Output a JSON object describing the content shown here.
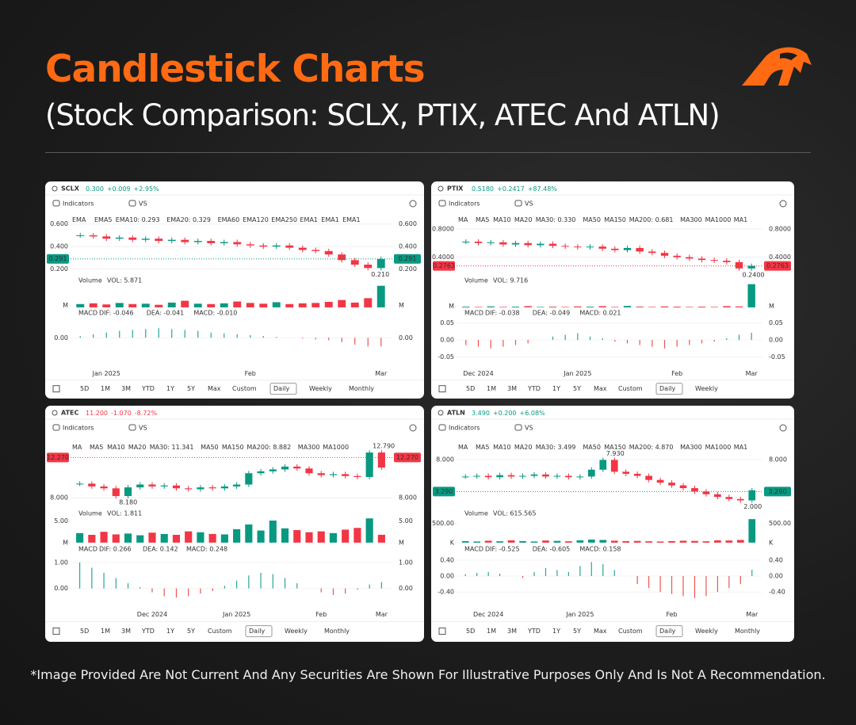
{
  "header": {
    "title": "Candlestick Charts",
    "subtitle": "(Stock Comparison: SCLX, PTIX, ATEC And ATLN)"
  },
  "footer": "*Image Provided Are Not Current And Any Securities Are Shown For Illustrative Purposes Only And Is Not A Recommendation.",
  "chart_data": [
    {
      "type": "candlestick",
      "ticker": "SCLX",
      "price": "0.300",
      "change": "+0.009",
      "change_pct": "+2.95%",
      "change_color": "#089981",
      "toolbar": [
        "Indicators",
        "VS"
      ],
      "ma_label": "EMA",
      "ma_items": [
        {
          "label": "EMA5",
          "color": "#f5c08a"
        },
        {
          "label": "EMA10: 0.293",
          "color": "#2962ff"
        },
        {
          "label": "EMA20: 0.329",
          "color": "#d500f9"
        },
        {
          "label": "EMA60",
          "color": "#7fb8e8"
        },
        {
          "label": "EMA120",
          "color": "#80cbc4"
        },
        {
          "label": "EMA250",
          "color": "#f48fb1"
        },
        {
          "label": "EMA1",
          "color": "#a5c8f0"
        },
        {
          "label": "EMA1",
          "color": "#ce93d8"
        },
        {
          "label": "EMA1",
          "color": "#ffcc80"
        }
      ],
      "categories": [
        null,
        null,
        "Jan 2025",
        null,
        null,
        null,
        null,
        null,
        null,
        null,
        null,
        null,
        null,
        "Feb",
        null,
        null,
        null,
        null,
        null,
        null,
        null,
        null,
        null,
        "Mar"
      ],
      "closes": [
        0.5,
        0.49,
        0.47,
        0.48,
        0.46,
        0.47,
        0.45,
        0.46,
        0.44,
        0.45,
        0.43,
        0.44,
        0.42,
        0.41,
        0.4,
        0.41,
        0.39,
        0.37,
        0.36,
        0.33,
        0.28,
        0.24,
        0.21,
        0.29
      ],
      "ylim": [
        0.15,
        0.65
      ],
      "yticks": [
        {
          "value": 0.6,
          "label": "0.600"
        },
        {
          "value": 0.4,
          "label": "0.400"
        },
        {
          "value": 0.2,
          "label": "0.200"
        }
      ],
      "last_price": {
        "value": 0.291,
        "label": "0.291"
      },
      "last_price_color": "#089981",
      "extremes": [
        {
          "value": 0.21,
          "label": "0.210"
        }
      ],
      "volume_label": "Volume",
      "volume_value": "VOL: 5.871",
      "volumes": [
        0.9,
        1.1,
        0.8,
        1.2,
        0.9,
        1.0,
        0.7,
        1.3,
        1.8,
        1.0,
        0.9,
        1.1,
        1.6,
        1.2,
        1.0,
        1.4,
        0.9,
        1.1,
        1.2,
        1.5,
        2.0,
        1.3,
        2.5,
        5.871
      ],
      "volume_lim": [
        0,
        6.5
      ],
      "volume_ticks": [
        {
          "value": 0.5,
          "label": "M"
        }
      ],
      "macd_label": "MACD",
      "macd_items": [
        {
          "label": "DIF: -0.046",
          "color": "#ff9800"
        },
        {
          "label": "DEA: -0.041",
          "color": "#2196f3"
        },
        {
          "label": "MACD: -0.010",
          "color": "#e040fb"
        }
      ],
      "macd": [
        0.002,
        0.004,
        0.006,
        0.008,
        0.009,
        0.01,
        0.011,
        0.01,
        0.009,
        0.008,
        0.006,
        0.005,
        0.004,
        0.003,
        0.002,
        0.001,
        0.0,
        -0.001,
        -0.002,
        -0.003,
        -0.005,
        -0.008,
        -0.01,
        -0.01
      ],
      "macd_lim": [
        -0.03,
        0.025
      ],
      "macd_ticks": [
        {
          "value": 0,
          "label": "0.00"
        }
      ],
      "ranges": [
        "5D",
        "1M",
        "3M",
        "YTD",
        "1Y",
        "5Y",
        "Max",
        "Custom"
      ],
      "intervals": [
        "Daily",
        "Weekly",
        "Monthly"
      ]
    },
    {
      "type": "candlestick",
      "ticker": "PTIX",
      "price": "0.5180",
      "change": "+0.2417",
      "change_pct": "+87.48%",
      "change_color": "#089981",
      "toolbar": [
        "Indicators",
        "VS"
      ],
      "ma_label": "MA",
      "ma_items": [
        {
          "label": "MA5",
          "color": "#f5c08a"
        },
        {
          "label": "MA10",
          "color": "#80deea"
        },
        {
          "label": "MA20",
          "color": "#ce93d8"
        },
        {
          "label": "MA30: 0.330",
          "color": "#2962ff"
        },
        {
          "label": "MA50",
          "color": "#90caf9"
        },
        {
          "label": "MA150",
          "color": "#80cbc4"
        },
        {
          "label": "MA200: 0.681",
          "color": "#f23645"
        },
        {
          "label": "MA300",
          "color": "#ffcc80"
        },
        {
          "label": "MA1000",
          "color": "#b39ddb"
        },
        {
          "label": "MA1",
          "color": "#a5c8f0"
        }
      ],
      "categories": [
        null,
        "Dec 2024",
        null,
        null,
        null,
        null,
        null,
        null,
        null,
        "Jan 2025",
        null,
        null,
        null,
        null,
        null,
        null,
        null,
        "Feb",
        null,
        null,
        null,
        null,
        null,
        "Mar"
      ],
      "closes": [
        0.62,
        0.6,
        0.61,
        0.58,
        0.6,
        0.57,
        0.59,
        0.56,
        0.55,
        0.54,
        0.55,
        0.52,
        0.5,
        0.53,
        0.48,
        0.46,
        0.42,
        0.4,
        0.38,
        0.36,
        0.35,
        0.33,
        0.24,
        0.2763
      ],
      "ylim": [
        0.15,
        0.95
      ],
      "yticks": [
        {
          "value": 0.8,
          "label": "0.8000"
        },
        {
          "value": 0.4,
          "label": "0.4000"
        }
      ],
      "last_price": {
        "value": 0.2763,
        "label": "0.2763"
      },
      "last_price_color": "#f23645",
      "extremes": [
        {
          "value": 0.24,
          "label": "0.2400"
        }
      ],
      "volume_label": "Volume",
      "volume_value": "VOL: 9.716",
      "volumes": [
        0.3,
        0.2,
        0.4,
        0.2,
        0.3,
        0.5,
        0.2,
        0.3,
        0.2,
        0.4,
        0.3,
        0.5,
        0.2,
        0.6,
        0.3,
        0.2,
        0.4,
        0.3,
        0.2,
        0.3,
        0.2,
        0.5,
        0.4,
        9.716
      ],
      "volume_lim": [
        0,
        10
      ],
      "volume_ticks": [
        {
          "value": 0.5,
          "label": "M"
        }
      ],
      "macd_label": "MACD",
      "macd_items": [
        {
          "label": "DIF: -0.038",
          "color": "#ff9800"
        },
        {
          "label": "DEA: -0.049",
          "color": "#2196f3"
        },
        {
          "label": "MACD: 0.021",
          "color": "#e040fb"
        }
      ],
      "macd": [
        -0.015,
        -0.02,
        -0.025,
        -0.02,
        -0.015,
        -0.01,
        0.0,
        0.01,
        0.015,
        0.02,
        0.01,
        0.005,
        -0.005,
        -0.01,
        -0.015,
        -0.02,
        -0.025,
        -0.02,
        -0.015,
        -0.01,
        -0.005,
        0.005,
        0.015,
        0.021
      ],
      "macd_lim": [
        -0.07,
        0.07
      ],
      "macd_ticks": [
        {
          "value": 0.05,
          "label": "0.05"
        },
        {
          "value": 0,
          "label": "0.00"
        },
        {
          "value": -0.05,
          "label": "-0.05"
        }
      ],
      "ranges": [
        "5D",
        "1M",
        "3M",
        "YTD",
        "1Y",
        "5Y",
        "Max",
        "Custom"
      ],
      "intervals": [
        "Daily",
        "Weekly"
      ]
    },
    {
      "type": "candlestick",
      "ticker": "ATEC",
      "price": "11.200",
      "change": "-1.070",
      "change_pct": "-8.72%",
      "change_color": "#f23645",
      "toolbar": [
        "Indicators",
        "VS"
      ],
      "ma_label": "MA",
      "ma_items": [
        {
          "label": "MA5",
          "color": "#f5c08a"
        },
        {
          "label": "MA10",
          "color": "#80deea"
        },
        {
          "label": "MA20",
          "color": "#ce93d8"
        },
        {
          "label": "MA30: 11.341",
          "color": "#2962ff"
        },
        {
          "label": "MA50",
          "color": "#90caf9"
        },
        {
          "label": "MA150",
          "color": "#80cbc4"
        },
        {
          "label": "MA200: 8.882",
          "color": "#f23645"
        },
        {
          "label": "MA300",
          "color": "#ffcc80"
        },
        {
          "label": "MA1000",
          "color": "#b39ddb"
        }
      ],
      "categories": [
        null,
        null,
        null,
        null,
        null,
        null,
        "Dec 2024",
        null,
        null,
        null,
        null,
        null,
        null,
        "Jan 2025",
        null,
        null,
        null,
        null,
        null,
        null,
        "Feb",
        null,
        null,
        null,
        null,
        "Mar"
      ],
      "closes": [
        9.5,
        9.2,
        9.0,
        8.18,
        9.1,
        9.4,
        9.2,
        9.3,
        9.0,
        8.9,
        9.1,
        9.0,
        9.2,
        9.4,
        10.6,
        10.8,
        11.0,
        11.3,
        11.1,
        10.6,
        10.4,
        10.5,
        10.3,
        10.2,
        12.79,
        11.2
      ],
      "ylim": [
        7,
        13.5
      ],
      "yticks": [
        {
          "value": 8,
          "label": "8.000"
        }
      ],
      "last_price": {
        "value": 12.27,
        "label": "12.270"
      },
      "last_price_color": "#f23645",
      "extremes": [
        {
          "value": 8.18,
          "label": "8.180"
        },
        {
          "value": 12.79,
          "label": "12.790"
        }
      ],
      "volume_label": "Volume",
      "volume_value": "VOL: 1.811",
      "volumes": [
        2.2,
        1.8,
        2.5,
        1.9,
        2.1,
        1.7,
        2.3,
        2.0,
        1.8,
        2.6,
        2.4,
        2.0,
        1.9,
        3.1,
        4.2,
        2.8,
        5.1,
        3.3,
        2.9,
        2.4,
        2.6,
        2.2,
        3.0,
        3.4,
        5.6,
        1.811
      ],
      "volume_lim": [
        0,
        6
      ],
      "volume_ticks": [
        {
          "value": 5,
          "label": "5.00"
        },
        {
          "value": 0,
          "label": "M"
        }
      ],
      "macd_label": "MACD",
      "macd_items": [
        {
          "label": "DIF: 0.266",
          "color": "#ff9800"
        },
        {
          "label": "DEA: 0.142",
          "color": "#2196f3"
        },
        {
          "label": "MACD: 0.248",
          "color": "#e040fb"
        }
      ],
      "macd": [
        1.0,
        0.8,
        0.6,
        0.4,
        0.2,
        0.05,
        -0.15,
        -0.3,
        -0.35,
        -0.3,
        -0.2,
        -0.1,
        0.1,
        0.3,
        0.5,
        0.6,
        0.55,
        0.4,
        0.2,
        0.0,
        -0.15,
        -0.25,
        -0.2,
        -0.05,
        0.15,
        0.248
      ],
      "macd_lim": [
        -0.6,
        1.4
      ],
      "macd_ticks": [
        {
          "value": 1,
          "label": "1.00"
        },
        {
          "value": 0,
          "label": "0.00"
        }
      ],
      "ranges": [
        "5D",
        "1M",
        "3M",
        "YTD",
        "1Y",
        "5Y",
        "Custom"
      ],
      "intervals": [
        "Daily",
        "Weekly",
        "Monthly"
      ]
    },
    {
      "type": "candlestick",
      "ticker": "ATLN",
      "price": "3.490",
      "change": "+0.200",
      "change_pct": "+6.08%",
      "change_color": "#089981",
      "toolbar": [
        "Indicators",
        "VS"
      ],
      "ma_label": "MA",
      "ma_items": [
        {
          "label": "MA5",
          "color": "#f5c08a"
        },
        {
          "label": "MA10",
          "color": "#80deea"
        },
        {
          "label": "MA20",
          "color": "#ce93d8"
        },
        {
          "label": "MA30: 3.499",
          "color": "#2962ff"
        },
        {
          "label": "MA50",
          "color": "#90caf9"
        },
        {
          "label": "MA150",
          "color": "#80cbc4"
        },
        {
          "label": "MA200: 4.870",
          "color": "#f23645"
        },
        {
          "label": "MA300",
          "color": "#ffcc80"
        },
        {
          "label": "MA1000",
          "color": "#b39ddb"
        },
        {
          "label": "MA1",
          "color": "#a5c8f0"
        }
      ],
      "categories": [
        null,
        null,
        "Dec 2024",
        null,
        null,
        null,
        null,
        null,
        null,
        null,
        "Jan 2025",
        null,
        null,
        null,
        null,
        null,
        null,
        null,
        "Feb",
        null,
        null,
        null,
        null,
        null,
        null,
        "Mar"
      ],
      "closes": [
        5.5,
        5.6,
        5.4,
        5.7,
        5.5,
        5.6,
        5.8,
        5.5,
        5.6,
        5.4,
        5.5,
        6.5,
        7.93,
        6.2,
        5.9,
        5.6,
        5.0,
        4.6,
        4.2,
        3.8,
        3.3,
        2.9,
        2.5,
        2.2,
        2.0,
        3.49
      ],
      "ylim": [
        1,
        10
      ],
      "yticks": [
        {
          "value": 8,
          "label": "8.000"
        }
      ],
      "last_price": {
        "value": 3.29,
        "label": "3.290"
      },
      "last_price_color": "#089981",
      "extremes": [
        {
          "value": 7.93,
          "label": "7.930"
        },
        {
          "value": 2.0,
          "label": "2.000"
        }
      ],
      "volume_label": "Volume",
      "volume_value": "VOL: 615.565",
      "volumes": [
        40,
        30,
        50,
        35,
        60,
        40,
        30,
        55,
        45,
        35,
        60,
        80,
        70,
        50,
        40,
        45,
        35,
        30,
        40,
        50,
        45,
        35,
        60,
        55,
        70,
        615.565
      ],
      "volume_lim": [
        0,
        680
      ],
      "volume_ticks": [
        {
          "value": 500,
          "label": "500.00"
        },
        {
          "value": 0,
          "label": "K"
        }
      ],
      "macd_label": "MACD",
      "macd_items": [
        {
          "label": "DIF: -0.525",
          "color": "#ff9800"
        },
        {
          "label": "DEA: -0.605",
          "color": "#2196f3"
        },
        {
          "label": "MACD: 0.158",
          "color": "#e040fb"
        }
      ],
      "macd": [
        0.05,
        0.08,
        0.1,
        0.06,
        0.0,
        -0.05,
        0.1,
        0.2,
        0.15,
        0.1,
        0.25,
        0.35,
        0.3,
        0.15,
        0.0,
        -0.2,
        -0.3,
        -0.4,
        -0.45,
        -0.5,
        -0.55,
        -0.5,
        -0.4,
        -0.3,
        -0.2,
        0.158
      ],
      "macd_lim": [
        -0.7,
        0.6
      ],
      "macd_ticks": [
        {
          "value": 0.4,
          "label": "0.40"
        },
        {
          "value": 0,
          "label": "0.00"
        },
        {
          "value": -0.4,
          "label": "-0.40"
        }
      ],
      "ranges": [
        "5D",
        "1M",
        "3M",
        "YTD",
        "1Y",
        "5Y",
        "Max",
        "Custom"
      ],
      "intervals": [
        "Daily",
        "Weekly",
        "Monthly"
      ]
    }
  ]
}
